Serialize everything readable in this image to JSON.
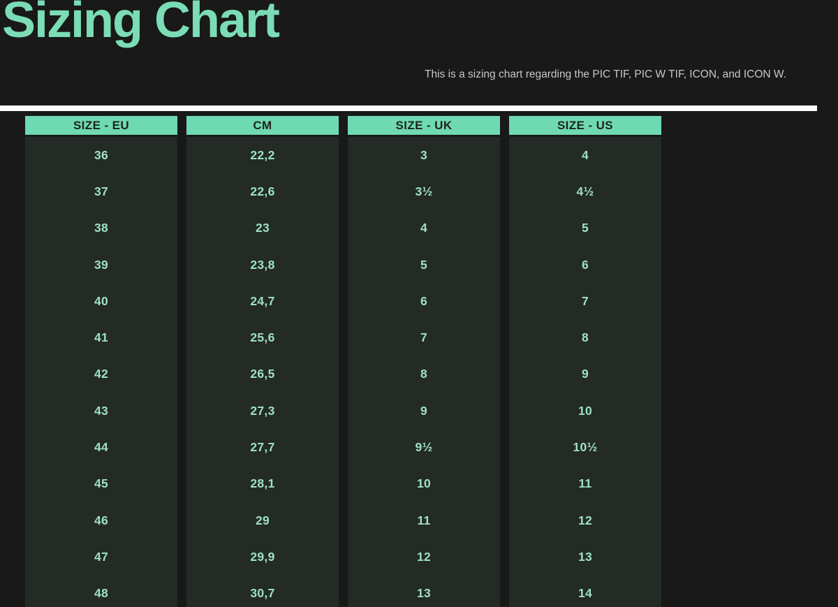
{
  "page": {
    "title": "Sizing Chart",
    "subtitle": "This is a sizing chart regarding the PIC TIF, PIC W TIF, ICON, and ICON W.",
    "colors": {
      "background": "#191919",
      "column_background": "#242a26",
      "accent_teal": "#6fd9b2",
      "title_teal": "#7bdcb6",
      "cell_text": "#9de2c1",
      "header_text": "#1e231f",
      "subtitle_text": "#c7c7c7",
      "divider": "#fdfdfd"
    }
  },
  "chart_data": {
    "type": "table",
    "title": "Sizing Chart",
    "columns": [
      "SIZE - EU",
      "CM",
      "SIZE - UK",
      "SIZE - US"
    ],
    "rows": [
      [
        "36",
        "22,2",
        "3",
        "4"
      ],
      [
        "37",
        "22,6",
        "3½",
        "4½"
      ],
      [
        "38",
        "23",
        "4",
        "5"
      ],
      [
        "39",
        "23,8",
        "5",
        "6"
      ],
      [
        "40",
        "24,7",
        "6",
        "7"
      ],
      [
        "41",
        "25,6",
        "7",
        "8"
      ],
      [
        "42",
        "26,5",
        "8",
        "9"
      ],
      [
        "43",
        "27,3",
        "9",
        "10"
      ],
      [
        "44",
        "27,7",
        "9½",
        "10½"
      ],
      [
        "45",
        "28,1",
        "10",
        "11"
      ],
      [
        "46",
        "29",
        "11",
        "12"
      ],
      [
        "47",
        "29,9",
        "12",
        "13"
      ],
      [
        "48",
        "30,7",
        "13",
        "14"
      ]
    ],
    "layout": {
      "legend": "none",
      "grid": "off",
      "column_count": 4,
      "row_count": 13
    }
  }
}
